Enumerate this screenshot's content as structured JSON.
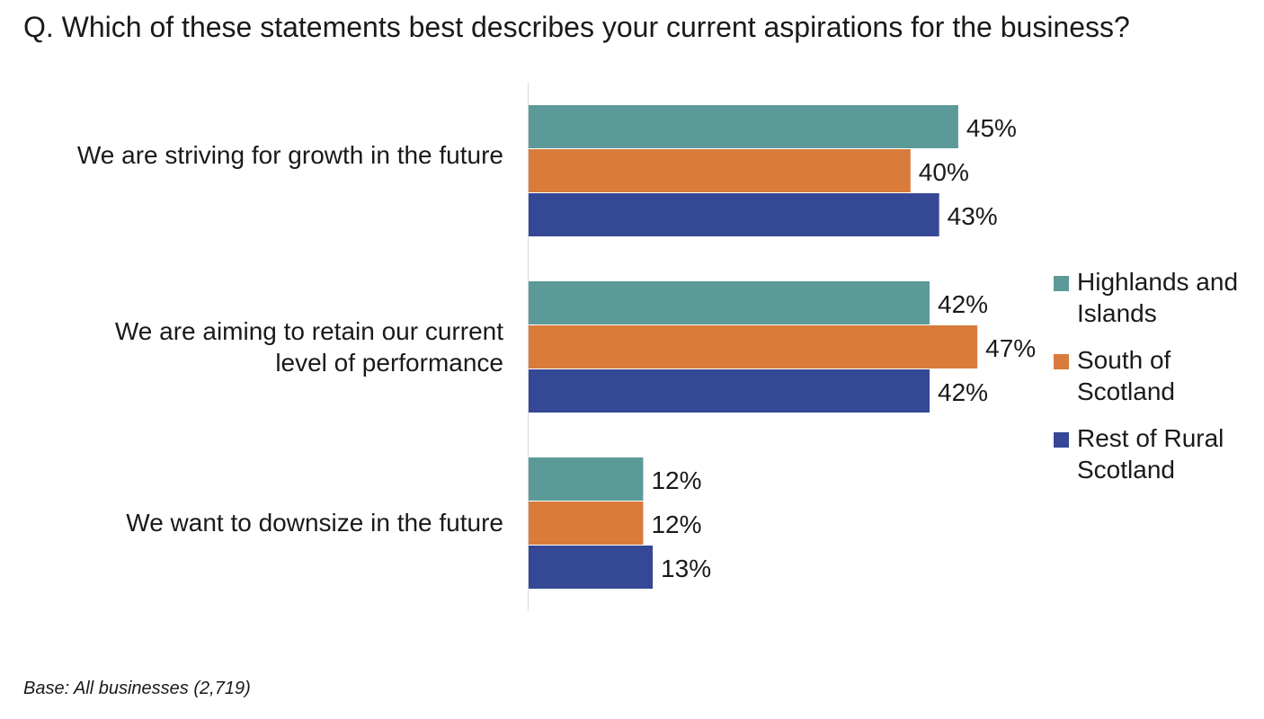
{
  "question": {
    "prefix": "Q.",
    "text": "Which of these statements best describes your current aspirations for the business?"
  },
  "footnote": "Base: All businesses (2,719)",
  "chart_data": {
    "type": "bar",
    "orientation": "horizontal",
    "categories": [
      "We are striving for growth in the future",
      "We are aiming to retain our current level of performance",
      "We want to downsize in the future"
    ],
    "series": [
      {
        "name": "Highlands and Islands",
        "color": "#5b9a98",
        "values": [
          45,
          42,
          12
        ],
        "labels": [
          "45%",
          "42%",
          "12%"
        ]
      },
      {
        "name": "South of Scotland",
        "color": "#d97b3a",
        "values": [
          40,
          47,
          12
        ],
        "labels": [
          "40%",
          "47%",
          "12%"
        ]
      },
      {
        "name": "Rest of Rural Scotland",
        "color": "#354895",
        "values": [
          43,
          42,
          13
        ],
        "labels": [
          "43%",
          "42%",
          "13%"
        ]
      }
    ],
    "value_suffix": "%",
    "legend_position": "right",
    "grid": false,
    "xlim": [
      0,
      50
    ]
  }
}
